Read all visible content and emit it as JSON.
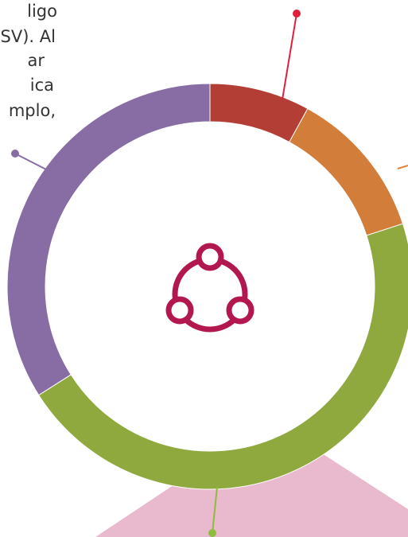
{
  "text": [
    "ligo",
    "SV). Al",
    "ar",
    "ica",
    "mplo,"
  ],
  "chart_data": {
    "type": "donut",
    "series": [
      {
        "color": "#b33e35",
        "values": [
          8
        ]
      },
      {
        "color": "#d27d3a",
        "values": [
          12
        ]
      },
      {
        "color": "#8fa93f",
        "values": [
          46
        ]
      },
      {
        "color": "#886ca4",
        "values": [
          34
        ]
      }
    ]
  }
}
